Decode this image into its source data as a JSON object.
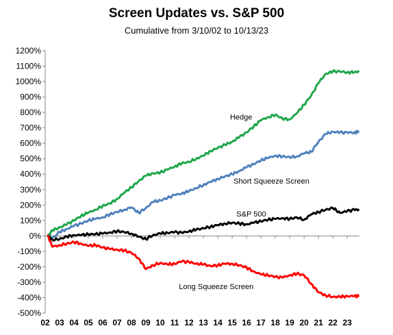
{
  "chart_data": {
    "type": "line",
    "title": "Screen Updates vs. S&P 500",
    "subtitle": "Cumulative from 3/10/02 to 10/13/23",
    "xlabel": "",
    "ylabel": "",
    "xlim": [
      2002,
      2023.85
    ],
    "ylim": [
      -500,
      1200
    ],
    "y_tick_step": 100,
    "y_tick_labels": [
      "-500%",
      "-400%",
      "-300%",
      "-200%",
      "-100%",
      "0%",
      "100%",
      "200%",
      "300%",
      "400%",
      "500%",
      "600%",
      "700%",
      "800%",
      "900%",
      "1000%",
      "1100%",
      "1200%"
    ],
    "x_tick_labels": [
      "02",
      "03",
      "04",
      "05",
      "06",
      "07",
      "08",
      "09",
      "10",
      "11",
      "12",
      "13",
      "14",
      "15",
      "16",
      "17",
      "18",
      "19",
      "20",
      "21",
      "22",
      "23"
    ],
    "grid": false,
    "legend": "none (series labeled directly on chart)",
    "series": [
      {
        "name": "Hedge",
        "color": "#1fa64a",
        "x": [
          2002.19,
          2002.5,
          2003.0,
          2003.5,
          2004.0,
          2004.5,
          2005.0,
          2005.5,
          2006.0,
          2006.5,
          2007.0,
          2007.5,
          2008.0,
          2008.5,
          2009.0,
          2009.5,
          2010.0,
          2010.5,
          2011.0,
          2011.5,
          2012.0,
          2012.5,
          2013.0,
          2013.5,
          2014.0,
          2014.5,
          2015.0,
          2015.5,
          2016.0,
          2016.5,
          2017.0,
          2017.5,
          2018.0,
          2018.5,
          2019.0,
          2019.5,
          2020.0,
          2020.5,
          2021.0,
          2021.5,
          2022.0,
          2022.5,
          2023.0,
          2023.5,
          2023.78
        ],
        "y": [
          0,
          35,
          55,
          75,
          100,
          130,
          150,
          170,
          195,
          210,
          240,
          280,
          315,
          355,
          390,
          405,
          410,
          430,
          450,
          470,
          480,
          500,
          520,
          550,
          570,
          590,
          610,
          640,
          670,
          710,
          750,
          770,
          785,
          760,
          755,
          795,
          850,
          910,
          990,
          1050,
          1065,
          1065,
          1060,
          1060,
          1065
        ]
      },
      {
        "name": "Short Squeeze Screen",
        "color": "#4f81bd",
        "x": [
          2002.19,
          2002.5,
          2003.0,
          2003.5,
          2004.0,
          2004.5,
          2005.0,
          2005.5,
          2006.0,
          2006.5,
          2007.0,
          2007.5,
          2008.0,
          2008.5,
          2009.0,
          2009.5,
          2010.0,
          2010.5,
          2011.0,
          2011.5,
          2012.0,
          2012.5,
          2013.0,
          2013.5,
          2014.0,
          2014.5,
          2015.0,
          2015.5,
          2016.0,
          2016.5,
          2017.0,
          2017.5,
          2018.0,
          2018.5,
          2019.0,
          2019.5,
          2020.0,
          2020.5,
          2021.0,
          2021.5,
          2022.0,
          2022.5,
          2023.0,
          2023.5,
          2023.78
        ],
        "y": [
          0,
          -15,
          25,
          45,
          65,
          80,
          100,
          110,
          120,
          140,
          155,
          170,
          185,
          150,
          180,
          220,
          230,
          245,
          265,
          275,
          290,
          310,
          330,
          350,
          370,
          385,
          400,
          420,
          445,
          465,
          490,
          505,
          520,
          515,
          510,
          515,
          535,
          545,
          610,
          660,
          675,
          670,
          670,
          670,
          675
        ]
      },
      {
        "name": "S&P 500",
        "color": "#000000",
        "x": [
          2002.19,
          2002.5,
          2003.0,
          2003.5,
          2004.0,
          2004.5,
          2005.0,
          2005.5,
          2006.0,
          2006.5,
          2007.0,
          2007.5,
          2008.0,
          2008.5,
          2009.0,
          2009.5,
          2010.0,
          2010.5,
          2011.0,
          2011.5,
          2012.0,
          2012.5,
          2013.0,
          2013.5,
          2014.0,
          2014.5,
          2015.0,
          2015.5,
          2016.0,
          2016.5,
          2017.0,
          2017.5,
          2018.0,
          2018.5,
          2019.0,
          2019.5,
          2020.0,
          2020.5,
          2021.0,
          2021.5,
          2022.0,
          2022.5,
          2023.0,
          2023.5,
          2023.78
        ],
        "y": [
          0,
          -25,
          -20,
          -5,
          5,
          5,
          10,
          12,
          15,
          22,
          30,
          25,
          15,
          -5,
          -20,
          5,
          15,
          20,
          25,
          20,
          30,
          40,
          50,
          60,
          70,
          80,
          85,
          80,
          75,
          85,
          95,
          105,
          110,
          115,
          110,
          120,
          105,
          140,
          155,
          170,
          180,
          150,
          160,
          170,
          170
        ]
      },
      {
        "name": "Long Squeeze Screen",
        "color": "#ff0000",
        "x": [
          2002.19,
          2002.5,
          2003.0,
          2003.5,
          2004.0,
          2004.5,
          2005.0,
          2005.5,
          2006.0,
          2006.5,
          2007.0,
          2007.5,
          2008.0,
          2008.5,
          2009.0,
          2009.5,
          2010.0,
          2010.5,
          2011.0,
          2011.5,
          2012.0,
          2012.5,
          2013.0,
          2013.5,
          2014.0,
          2014.5,
          2015.0,
          2015.5,
          2016.0,
          2016.5,
          2017.0,
          2017.5,
          2018.0,
          2018.5,
          2019.0,
          2019.5,
          2020.0,
          2020.5,
          2021.0,
          2021.5,
          2022.0,
          2022.5,
          2023.0,
          2023.5,
          2023.78
        ],
        "y": [
          0,
          -70,
          -60,
          -50,
          -40,
          -50,
          -65,
          -60,
          -75,
          -85,
          -90,
          -95,
          -110,
          -145,
          -215,
          -190,
          -175,
          -185,
          -180,
          -165,
          -170,
          -180,
          -185,
          -195,
          -190,
          -180,
          -180,
          -190,
          -205,
          -230,
          -250,
          -255,
          -265,
          -270,
          -255,
          -245,
          -255,
          -310,
          -365,
          -385,
          -395,
          -395,
          -390,
          -390,
          -390
        ]
      }
    ],
    "annotations": [
      {
        "text": "Hedge",
        "x": 2014.85,
        "y": 755
      },
      {
        "text": "Short Squeeze Screen",
        "x": 2015.1,
        "y": 340
      },
      {
        "text": "S&P 500",
        "x": 2015.3,
        "y": 125
      },
      {
        "text": "Long Squeeze Screen",
        "x": 2011.3,
        "y": -345
      }
    ]
  }
}
